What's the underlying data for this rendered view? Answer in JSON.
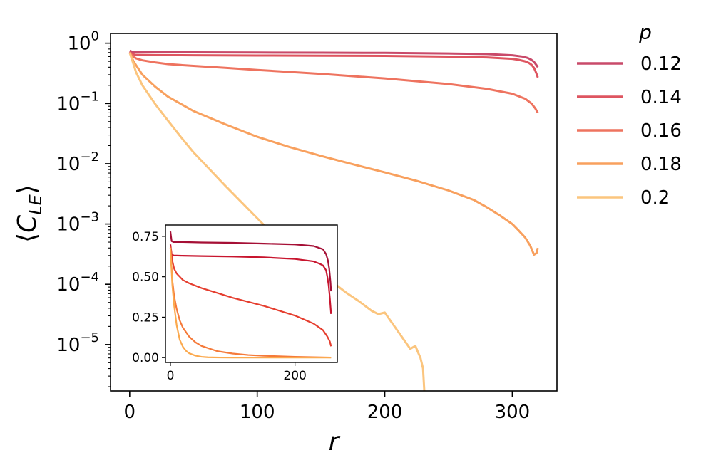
{
  "chart_data": [
    {
      "type": "line",
      "xlabel": "r",
      "ylabel": "⟨C_LE⟩",
      "ylabel_main": "C",
      "ylabel_sub": "LE",
      "yscale": "log",
      "xlim": [
        -15,
        335
      ],
      "ylim": [
        1.7e-06,
        1.45
      ],
      "xticks": [
        0,
        100,
        200,
        300
      ],
      "xtick_labels": [
        "0",
        "100",
        "200",
        "300"
      ],
      "yticks": [
        1,
        0.1,
        0.01,
        0.001,
        0.0001,
        1e-05
      ],
      "ytick_labels": [
        {
          "base": "10",
          "exp": "0"
        },
        {
          "base": "10",
          "exp": "−1"
        },
        {
          "base": "10",
          "exp": "−2"
        },
        {
          "base": "10",
          "exp": "−3"
        },
        {
          "base": "10",
          "exp": "−4"
        },
        {
          "base": "10",
          "exp": "−5"
        }
      ],
      "grid": false,
      "legend": {
        "title": "p",
        "placement": "outside-right"
      },
      "series": [
        {
          "name": "0.12",
          "color": "#c94a6a",
          "x": [
            0,
            2,
            5,
            20,
            50,
            100,
            150,
            200,
            250,
            280,
            300,
            308,
            312,
            315,
            317,
            318,
            319,
            320
          ],
          "y": [
            0.75,
            0.72,
            0.71,
            0.71,
            0.705,
            0.7,
            0.695,
            0.69,
            0.675,
            0.66,
            0.63,
            0.6,
            0.57,
            0.53,
            0.49,
            0.46,
            0.43,
            0.4
          ]
        },
        {
          "name": "0.14",
          "color": "#de5560",
          "x": [
            0,
            2,
            5,
            20,
            50,
            100,
            150,
            200,
            250,
            280,
            300,
            305,
            310,
            313,
            315,
            317,
            318,
            319,
            320
          ],
          "y": [
            0.72,
            0.66,
            0.64,
            0.635,
            0.63,
            0.625,
            0.62,
            0.615,
            0.6,
            0.58,
            0.55,
            0.53,
            0.5,
            0.47,
            0.44,
            0.39,
            0.35,
            0.31,
            0.27
          ]
        },
        {
          "name": "0.16",
          "color": "#ee735f",
          "x": [
            0,
            2,
            5,
            10,
            20,
            30,
            50,
            75,
            100,
            150,
            200,
            250,
            280,
            300,
            310,
            315,
            318,
            320
          ],
          "y": [
            0.7,
            0.62,
            0.56,
            0.52,
            0.48,
            0.45,
            0.42,
            0.39,
            0.36,
            0.31,
            0.26,
            0.21,
            0.175,
            0.145,
            0.12,
            0.1,
            0.083,
            0.07
          ]
        },
        {
          "name": "0.18",
          "color": "#f8a05e",
          "x": [
            0,
            3,
            10,
            20,
            30,
            50,
            75,
            100,
            125,
            150,
            175,
            200,
            225,
            250,
            270,
            280,
            290,
            300,
            305,
            310,
            314,
            317,
            319,
            320
          ],
          "y": [
            0.7,
            0.5,
            0.3,
            0.19,
            0.13,
            0.075,
            0.045,
            0.028,
            0.019,
            0.0135,
            0.0098,
            0.0072,
            0.0052,
            0.0036,
            0.0025,
            0.0019,
            0.0014,
            0.001,
            0.00078,
            0.0006,
            0.00044,
            0.00031,
            0.00033,
            0.0004
          ]
        },
        {
          "name": "0.2",
          "color": "#fbc57e",
          "x": [
            0,
            3,
            5,
            10,
            20,
            30,
            40,
            50,
            75,
            100,
            125,
            140,
            160,
            170,
            180,
            190,
            195,
            200,
            205,
            210,
            215,
            220,
            224,
            226,
            228,
            230,
            231
          ],
          "y": [
            0.7,
            0.45,
            0.33,
            0.2,
            0.098,
            0.052,
            0.028,
            0.0155,
            0.0043,
            0.00125,
            0.00036,
            0.000195,
            0.000105,
            7.2e-05,
            5.2e-05,
            3.6e-05,
            3.2e-05,
            3.4e-05,
            2.4e-05,
            1.7e-05,
            1.2e-05,
            8.5e-06,
            9.5e-06,
            7.5e-06,
            6e-06,
            4e-06,
            1.7e-06
          ]
        }
      ]
    },
    {
      "type": "line",
      "inset": true,
      "xlim": [
        -8,
        268
      ],
      "ylim": [
        -0.03,
        0.82
      ],
      "xticks": [
        0,
        200
      ],
      "xtick_labels": [
        "0",
        "200"
      ],
      "yticks": [
        0.0,
        0.25,
        0.5,
        0.75
      ],
      "ytick_labels": [
        "0.00",
        "0.25",
        "0.50",
        "0.75"
      ],
      "grid": false,
      "series": [
        {
          "color": "#a50f35",
          "x": [
            0,
            2,
            5,
            20,
            50,
            100,
            150,
            200,
            230,
            245,
            250,
            253,
            255,
            257,
            258
          ],
          "y": [
            0.78,
            0.72,
            0.715,
            0.715,
            0.712,
            0.71,
            0.705,
            0.7,
            0.69,
            0.67,
            0.64,
            0.6,
            0.55,
            0.47,
            0.41
          ]
        },
        {
          "color": "#c8152e",
          "x": [
            0,
            2,
            5,
            20,
            50,
            100,
            150,
            200,
            230,
            240,
            245,
            250,
            252,
            254,
            256,
            258
          ],
          "y": [
            0.7,
            0.64,
            0.632,
            0.63,
            0.628,
            0.625,
            0.62,
            0.61,
            0.595,
            0.58,
            0.57,
            0.54,
            0.5,
            0.45,
            0.37,
            0.27
          ]
        },
        {
          "color": "#e53e2f",
          "x": [
            0,
            3,
            6,
            10,
            15,
            20,
            30,
            50,
            75,
            100,
            150,
            200,
            230,
            245,
            252,
            256,
            258
          ],
          "y": [
            0.69,
            0.6,
            0.55,
            0.52,
            0.5,
            0.48,
            0.46,
            0.43,
            0.4,
            0.37,
            0.32,
            0.26,
            0.21,
            0.17,
            0.13,
            0.1,
            0.07
          ]
        },
        {
          "color": "#f57a3a",
          "x": [
            0,
            3,
            6,
            10,
            15,
            20,
            30,
            40,
            50,
            75,
            100,
            125,
            150,
            200,
            258
          ],
          "y": [
            0.68,
            0.48,
            0.38,
            0.3,
            0.23,
            0.185,
            0.13,
            0.095,
            0.072,
            0.04,
            0.025,
            0.016,
            0.011,
            0.005,
            0.0005
          ]
        },
        {
          "color": "#fba94e",
          "x": [
            0,
            3,
            6,
            10,
            15,
            20,
            25,
            30,
            40,
            50,
            60,
            80,
            100,
            150,
            258
          ],
          "y": [
            0.68,
            0.45,
            0.32,
            0.2,
            0.11,
            0.067,
            0.042,
            0.027,
            0.012,
            0.005,
            0.002,
            0.0005,
            0.0001,
            0.0,
            0.0
          ]
        }
      ]
    }
  ]
}
